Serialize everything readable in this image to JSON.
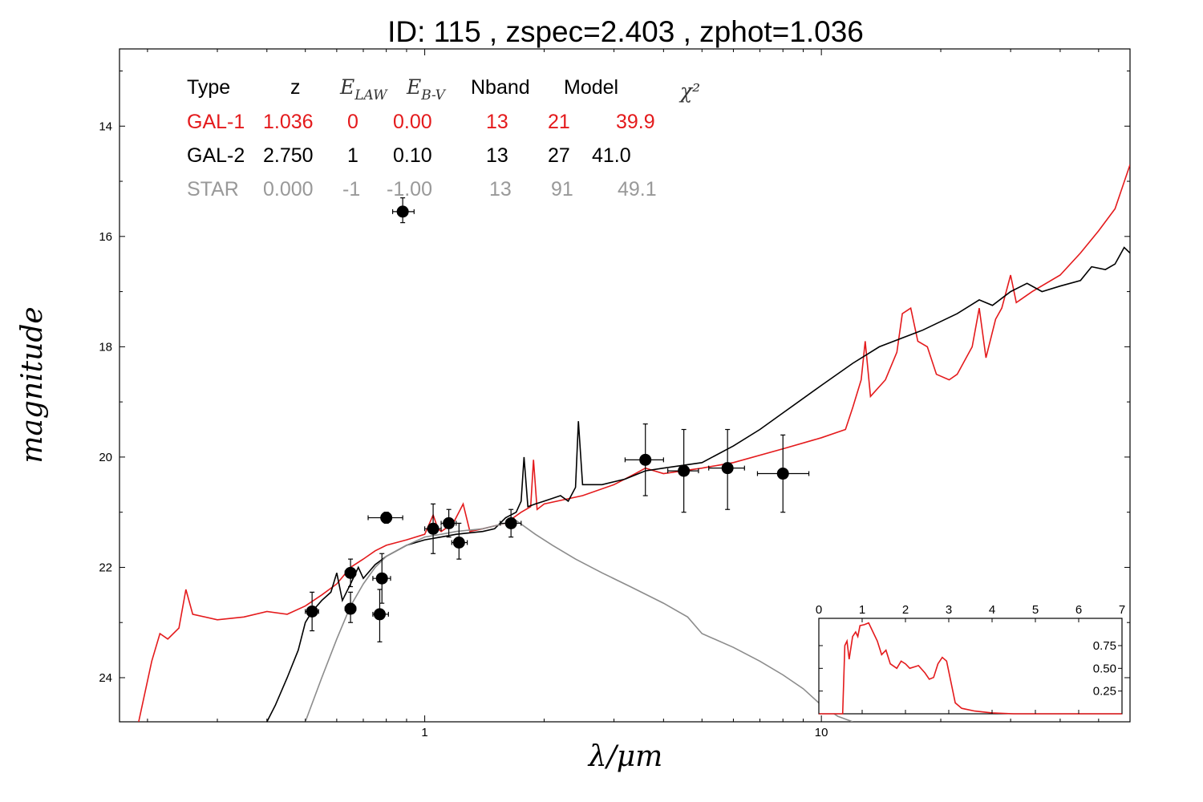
{
  "chart_data": {
    "type": "line",
    "title": "ID:  115   , zspec=2.403 , zphot=1.036",
    "xlabel": "λ/μm",
    "ylabel": "magnitude",
    "x_scale": "log",
    "x_range": [
      0.17,
      60
    ],
    "y_range": [
      24.8,
      12.6
    ],
    "y_inverted": true,
    "x_ticks": [
      {
        "value": 1,
        "label": "1"
      },
      {
        "value": 10,
        "label": "10"
      }
    ],
    "y_ticks": [
      {
        "value": 14,
        "label": "14"
      },
      {
        "value": 16,
        "label": "16"
      },
      {
        "value": 18,
        "label": "18"
      },
      {
        "value": 20,
        "label": "20"
      },
      {
        "value": 22,
        "label": "22"
      },
      {
        "value": 24,
        "label": "24"
      }
    ],
    "legend_table": {
      "headers": [
        "Type",
        "z",
        "E_LAW",
        "E_B-V",
        "Nband",
        "Model",
        "χ²"
      ],
      "rows": [
        {
          "cells": [
            "GAL-1",
            "1.036",
            "0",
            "0.00",
            "13",
            "21",
            "39.9"
          ],
          "color": "#e41a1c"
        },
        {
          "cells": [
            "GAL-2",
            "2.750",
            "1",
            "0.10",
            "13",
            "27",
            "41.0"
          ],
          "color": "#000000"
        },
        {
          "cells": [
            "STAR",
            "0.000",
            "-1",
            "-1.00",
            "13",
            "91",
            "49.1"
          ],
          "color": "#999999"
        }
      ]
    },
    "points": [
      {
        "x": 0.88,
        "y": 15.55,
        "xerr": [
          0.83,
          0.94
        ],
        "yerr": [
          15.3,
          15.75
        ]
      },
      {
        "x": 0.52,
        "y": 22.8,
        "xerr": [
          0.5,
          0.54
        ],
        "yerr": [
          22.45,
          23.15
        ]
      },
      {
        "x": 0.65,
        "y": 22.1,
        "xerr": [
          0.63,
          0.67
        ],
        "yerr": [
          21.85,
          22.35
        ]
      },
      {
        "x": 0.65,
        "y": 22.75,
        "xerr": [
          0.63,
          0.67
        ],
        "yerr": [
          22.45,
          23.0
        ]
      },
      {
        "x": 0.77,
        "y": 22.85,
        "xerr": [
          0.74,
          0.81
        ],
        "yerr": [
          22.4,
          23.35
        ]
      },
      {
        "x": 0.78,
        "y": 22.2,
        "xerr": [
          0.74,
          0.82
        ],
        "yerr": [
          21.75,
          22.65
        ]
      },
      {
        "x": 0.8,
        "y": 21.1,
        "xerr": [
          0.72,
          0.88
        ],
        "yerr": [
          21.0,
          21.2
        ]
      },
      {
        "x": 1.05,
        "y": 21.3,
        "xerr": [
          1.0,
          1.1
        ],
        "yerr": [
          20.85,
          21.75
        ]
      },
      {
        "x": 1.15,
        "y": 21.2,
        "xerr": [
          1.1,
          1.2
        ],
        "yerr": [
          20.95,
          21.45
        ]
      },
      {
        "x": 1.22,
        "y": 21.55,
        "xerr": [
          1.17,
          1.28
        ],
        "yerr": [
          21.2,
          21.85
        ]
      },
      {
        "x": 1.65,
        "y": 21.2,
        "xerr": [
          1.55,
          1.75
        ],
        "yerr": [
          20.95,
          21.45
        ]
      },
      {
        "x": 3.6,
        "y": 20.05,
        "xerr": [
          3.2,
          4.0
        ],
        "yerr": [
          19.4,
          20.7
        ]
      },
      {
        "x": 4.5,
        "y": 20.25,
        "xerr": [
          4.1,
          4.9
        ],
        "yerr": [
          19.5,
          21.0
        ]
      },
      {
        "x": 5.8,
        "y": 20.2,
        "xerr": [
          5.2,
          6.4
        ],
        "yerr": [
          19.5,
          20.95
        ]
      },
      {
        "x": 8.0,
        "y": 20.3,
        "xerr": [
          6.9,
          9.3
        ],
        "yerr": [
          19.6,
          21.0
        ]
      }
    ],
    "series": [
      {
        "color": "#e41a1c",
        "points": [
          [
            0.19,
            24.8
          ],
          [
            0.205,
            23.7
          ],
          [
            0.215,
            23.2
          ],
          [
            0.225,
            23.3
          ],
          [
            0.24,
            23.1
          ],
          [
            0.25,
            22.4
          ],
          [
            0.26,
            22.85
          ],
          [
            0.3,
            22.95
          ],
          [
            0.35,
            22.9
          ],
          [
            0.4,
            22.8
          ],
          [
            0.45,
            22.85
          ],
          [
            0.5,
            22.7
          ],
          [
            0.55,
            22.5
          ],
          [
            0.6,
            22.3
          ],
          [
            0.65,
            22.0
          ],
          [
            0.7,
            21.85
          ],
          [
            0.75,
            21.7
          ],
          [
            0.8,
            21.6
          ],
          [
            0.9,
            21.5
          ],
          [
            1.0,
            21.4
          ],
          [
            1.05,
            21.05
          ],
          [
            1.08,
            21.3
          ],
          [
            1.1,
            21.35
          ],
          [
            1.18,
            21.2
          ],
          [
            1.25,
            20.85
          ],
          [
            1.3,
            21.35
          ],
          [
            1.4,
            21.3
          ],
          [
            1.6,
            21.2
          ],
          [
            1.75,
            21.0
          ],
          [
            1.85,
            20.9
          ],
          [
            1.88,
            20.05
          ],
          [
            1.92,
            20.95
          ],
          [
            2.0,
            20.85
          ],
          [
            2.5,
            20.7
          ],
          [
            3.0,
            20.5
          ],
          [
            3.4,
            20.3
          ],
          [
            3.6,
            20.2
          ],
          [
            4.0,
            20.3
          ],
          [
            5.0,
            20.2
          ],
          [
            6.0,
            20.1
          ],
          [
            8.0,
            19.85
          ],
          [
            10.0,
            19.65
          ],
          [
            11.5,
            19.5
          ],
          [
            12.0,
            19.1
          ],
          [
            12.6,
            18.6
          ],
          [
            12.9,
            17.9
          ],
          [
            13.3,
            18.9
          ],
          [
            14.5,
            18.6
          ],
          [
            15.5,
            18.1
          ],
          [
            16.0,
            17.4
          ],
          [
            16.8,
            17.3
          ],
          [
            17.5,
            17.9
          ],
          [
            18.5,
            18.0
          ],
          [
            19.5,
            18.5
          ],
          [
            21.0,
            18.6
          ],
          [
            22.0,
            18.5
          ],
          [
            24.0,
            18.0
          ],
          [
            25.0,
            17.3
          ],
          [
            26.0,
            18.2
          ],
          [
            27.5,
            17.5
          ],
          [
            28.5,
            17.3
          ],
          [
            30.0,
            16.7
          ],
          [
            31.0,
            17.2
          ],
          [
            34.0,
            17.0
          ],
          [
            40.0,
            16.7
          ],
          [
            45.0,
            16.3
          ],
          [
            50.0,
            15.9
          ],
          [
            55.0,
            15.5
          ],
          [
            60.0,
            14.7
          ]
        ]
      },
      {
        "color": "#000000",
        "points": [
          [
            0.4,
            24.8
          ],
          [
            0.42,
            24.5
          ],
          [
            0.45,
            24.0
          ],
          [
            0.48,
            23.5
          ],
          [
            0.5,
            23.0
          ],
          [
            0.52,
            22.8
          ],
          [
            0.55,
            22.6
          ],
          [
            0.58,
            22.45
          ],
          [
            0.6,
            22.1
          ],
          [
            0.62,
            22.6
          ],
          [
            0.65,
            22.3
          ],
          [
            0.68,
            22.0
          ],
          [
            0.7,
            22.2
          ],
          [
            0.75,
            21.95
          ],
          [
            0.8,
            21.8
          ],
          [
            0.9,
            21.6
          ],
          [
            1.0,
            21.5
          ],
          [
            1.1,
            21.45
          ],
          [
            1.2,
            21.4
          ],
          [
            1.4,
            21.35
          ],
          [
            1.5,
            21.3
          ],
          [
            1.6,
            21.1
          ],
          [
            1.7,
            21.0
          ],
          [
            1.75,
            20.8
          ],
          [
            1.78,
            20.0
          ],
          [
            1.82,
            20.9
          ],
          [
            1.9,
            20.85
          ],
          [
            2.0,
            20.8
          ],
          [
            2.2,
            20.7
          ],
          [
            2.3,
            20.8
          ],
          [
            2.4,
            20.55
          ],
          [
            2.44,
            19.35
          ],
          [
            2.5,
            20.5
          ],
          [
            2.8,
            20.5
          ],
          [
            3.2,
            20.4
          ],
          [
            3.6,
            20.25
          ],
          [
            4.0,
            20.2
          ],
          [
            5.0,
            20.1
          ],
          [
            6.0,
            19.8
          ],
          [
            7.0,
            19.5
          ],
          [
            8.0,
            19.2
          ],
          [
            10.0,
            18.7
          ],
          [
            12.0,
            18.3
          ],
          [
            14.0,
            18.0
          ],
          [
            18.0,
            17.7
          ],
          [
            22.0,
            17.4
          ],
          [
            25.0,
            17.15
          ],
          [
            27.0,
            17.25
          ],
          [
            30.0,
            17.0
          ],
          [
            33.0,
            16.85
          ],
          [
            36.0,
            17.0
          ],
          [
            40.0,
            16.9
          ],
          [
            45.0,
            16.8
          ],
          [
            48.0,
            16.55
          ],
          [
            52.0,
            16.6
          ],
          [
            55.0,
            16.5
          ],
          [
            58.0,
            16.2
          ],
          [
            60.0,
            16.3
          ]
        ]
      },
      {
        "color": "#8c8c8c",
        "points": [
          [
            0.5,
            24.8
          ],
          [
            0.55,
            24.0
          ],
          [
            0.6,
            23.3
          ],
          [
            0.65,
            22.7
          ],
          [
            0.7,
            22.3
          ],
          [
            0.75,
            22.0
          ],
          [
            0.8,
            21.8
          ],
          [
            0.9,
            21.6
          ],
          [
            1.0,
            21.45
          ],
          [
            1.1,
            21.4
          ],
          [
            1.2,
            21.35
          ],
          [
            1.4,
            21.3
          ],
          [
            1.6,
            21.2
          ],
          [
            1.7,
            21.15
          ],
          [
            1.9,
            21.4
          ],
          [
            2.1,
            21.6
          ],
          [
            2.4,
            21.85
          ],
          [
            2.8,
            22.1
          ],
          [
            3.3,
            22.35
          ],
          [
            4.0,
            22.65
          ],
          [
            4.6,
            22.9
          ],
          [
            5.0,
            23.2
          ],
          [
            6.0,
            23.45
          ],
          [
            7.0,
            23.7
          ],
          [
            8.0,
            23.95
          ],
          [
            9.0,
            24.2
          ],
          [
            10.0,
            24.5
          ],
          [
            11.0,
            24.7
          ],
          [
            12.0,
            24.8
          ]
        ]
      }
    ],
    "inset": {
      "x_range": [
        0,
        7
      ],
      "y_range": [
        0,
        1.05
      ],
      "x_ticks": [
        "0",
        "1",
        "2",
        "3",
        "4",
        "5",
        "6",
        "7"
      ],
      "y_ticks": [
        "0.25",
        "0.50",
        "0.75"
      ],
      "color": "#e41a1c",
      "curve": [
        [
          0.0,
          0.0
        ],
        [
          0.55,
          0.0
        ],
        [
          0.6,
          0.75
        ],
        [
          0.65,
          0.8
        ],
        [
          0.7,
          0.6
        ],
        [
          0.78,
          0.85
        ],
        [
          0.85,
          0.9
        ],
        [
          0.9,
          0.85
        ],
        [
          0.95,
          0.97
        ],
        [
          1.05,
          0.98
        ],
        [
          1.15,
          1.0
        ],
        [
          1.25,
          0.9
        ],
        [
          1.35,
          0.8
        ],
        [
          1.45,
          0.65
        ],
        [
          1.55,
          0.7
        ],
        [
          1.65,
          0.55
        ],
        [
          1.8,
          0.5
        ],
        [
          1.9,
          0.58
        ],
        [
          2.0,
          0.55
        ],
        [
          2.1,
          0.5
        ],
        [
          2.3,
          0.53
        ],
        [
          2.45,
          0.45
        ],
        [
          2.55,
          0.38
        ],
        [
          2.65,
          0.4
        ],
        [
          2.75,
          0.55
        ],
        [
          2.85,
          0.62
        ],
        [
          2.95,
          0.58
        ],
        [
          3.05,
          0.35
        ],
        [
          3.15,
          0.12
        ],
        [
          3.3,
          0.06
        ],
        [
          3.6,
          0.03
        ],
        [
          4.0,
          0.01
        ],
        [
          4.5,
          0.0
        ],
        [
          7.0,
          0.0
        ]
      ]
    }
  }
}
